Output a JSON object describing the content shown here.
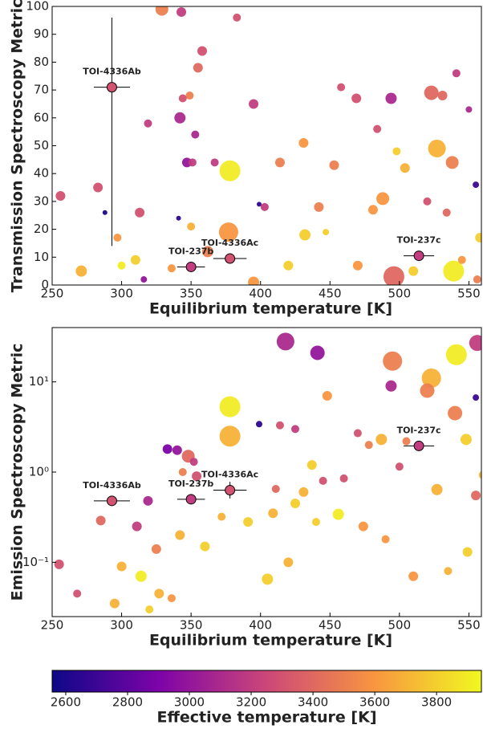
{
  "chart_data": [
    {
      "type": "scatter",
      "ylabel": "Transmission Spectroscopy Metric",
      "xlabel": "Equilibrium temperature [K]",
      "xlim": [
        250,
        559
      ],
      "ylim": [
        0,
        100
      ],
      "log_y": false,
      "xticks": [
        250,
        300,
        350,
        400,
        450,
        500,
        550
      ],
      "yticks": [
        0,
        10,
        20,
        30,
        40,
        50,
        60,
        70,
        80,
        90,
        100
      ],
      "x": [
        329,
        343,
        383,
        358,
        355,
        349,
        344,
        342,
        319,
        395,
        347,
        351,
        353,
        367,
        378,
        283,
        256,
        288,
        313,
        341,
        350,
        377,
        399,
        403,
        414,
        431,
        442,
        453,
        458,
        469,
        484,
        494,
        488,
        481,
        498,
        504,
        527,
        523,
        531,
        541,
        538,
        550,
        555,
        520,
        534,
        539,
        496,
        310,
        297,
        271,
        420,
        432,
        470,
        510,
        545,
        300,
        362,
        336,
        447,
        558,
        316,
        395,
        556
      ],
      "values": [
        99,
        98,
        96,
        84,
        78,
        68,
        67,
        60,
        58,
        65,
        44,
        44,
        54,
        44,
        41,
        35,
        32,
        26,
        26,
        24,
        21,
        19,
        29,
        28,
        44,
        51,
        28,
        43,
        71,
        67,
        56,
        67,
        31,
        27,
        48,
        42,
        49,
        69,
        68,
        76,
        44,
        63,
        36,
        30,
        26,
        5,
        3,
        9,
        17,
        5,
        7,
        18,
        7,
        5,
        9,
        7,
        12,
        6,
        19,
        17,
        2,
        1,
        2
      ],
      "sizes": [
        8,
        6,
        5,
        6,
        6,
        5,
        5,
        7,
        5,
        6,
        6,
        5,
        5,
        5,
        13,
        6,
        6,
        3,
        6,
        3,
        5,
        12,
        3,
        5,
        6,
        6,
        6,
        6,
        5,
        6,
        5,
        7,
        8,
        6,
        5,
        6,
        11,
        9,
        6,
        5,
        8,
        4,
        4,
        5,
        5,
        13,
        13,
        6,
        5,
        7,
        6,
        7,
        6,
        6,
        5,
        5,
        7,
        5,
        4,
        6,
        4,
        7,
        5
      ],
      "teff": [
        3500,
        3200,
        3300,
        3300,
        3400,
        3500,
        3300,
        3100,
        3200,
        3200,
        3000,
        3200,
        3100,
        3200,
        3900,
        3300,
        3300,
        2600,
        3300,
        2650,
        3700,
        3600,
        2650,
        3200,
        3500,
        3600,
        3500,
        3500,
        3300,
        3300,
        3300,
        3100,
        3600,
        3600,
        3800,
        3700,
        3700,
        3400,
        3400,
        3200,
        3500,
        3100,
        2700,
        3300,
        3400,
        3900,
        3400,
        3800,
        3600,
        3700,
        3800,
        3800,
        3600,
        3800,
        3600,
        3900,
        3500,
        3600,
        3800,
        3800,
        3000,
        3600,
        3500
      ],
      "highlights": [
        {
          "label": "TOI-4336Ab",
          "x": 293,
          "y": 71,
          "xerr": 13,
          "yerr": [
            57,
            25
          ],
          "teff": 3300
        },
        {
          "label": "TOI-237b",
          "x": 350,
          "y": 6.5,
          "xerr": 10,
          "teff": 3200
        },
        {
          "label": "TOI-4336Ac",
          "x": 378,
          "y": 9.5,
          "xerr": 12,
          "teff": 3300
        },
        {
          "label": "TOI-237c",
          "x": 514,
          "y": 10.5,
          "xerr": 11,
          "teff": 3200
        }
      ]
    },
    {
      "type": "scatter",
      "ylabel": "Emission Spectroscopy Metric",
      "xlabel": "Equilibrium temperature [K]",
      "xlim": [
        250,
        559
      ],
      "ylim": [
        0.025,
        40
      ],
      "log_y": true,
      "xticks": [
        250,
        300,
        350,
        400,
        450,
        500,
        550
      ],
      "yticks": [
        {
          "value": 0.1,
          "label": "10⁻¹"
        },
        {
          "value": 1,
          "label": "10⁰"
        },
        {
          "value": 10,
          "label": "10¹"
        }
      ],
      "x": [
        418,
        441,
        495,
        541,
        556,
        523,
        494,
        520,
        540,
        378,
        378,
        333,
        340,
        348,
        352,
        344,
        354,
        399,
        414,
        425,
        448,
        470,
        487,
        478,
        505,
        548,
        555,
        437,
        445,
        460,
        431,
        425,
        409,
        391,
        372,
        360,
        342,
        325,
        314,
        327,
        336,
        255,
        285,
        311,
        319,
        300,
        268,
        295,
        320,
        405,
        420,
        474,
        490,
        510,
        535,
        549,
        527,
        555,
        560,
        500,
        411,
        440,
        456
      ],
      "values": [
        28,
        21,
        17,
        20,
        27,
        11,
        9,
        8,
        4.5,
        5.3,
        2.5,
        1.8,
        1.75,
        1.5,
        1.3,
        1.0,
        0.9,
        3.4,
        3.3,
        3.0,
        7,
        2.7,
        2.3,
        2.0,
        2.2,
        2.3,
        6.7,
        1.2,
        0.8,
        0.85,
        0.6,
        0.45,
        0.35,
        0.28,
        0.32,
        0.15,
        0.2,
        0.14,
        0.07,
        0.045,
        0.04,
        0.095,
        0.29,
        0.25,
        0.48,
        0.09,
        0.045,
        0.035,
        0.03,
        0.065,
        0.1,
        0.25,
        0.18,
        0.07,
        0.08,
        0.13,
        0.64,
        0.55,
        0.93,
        1.15,
        0.65,
        0.28,
        0.34
      ],
      "sizes": [
        11,
        9,
        12,
        13,
        10,
        12,
        7,
        9,
        9,
        13,
        13,
        6,
        6,
        8,
        5,
        5,
        6,
        4,
        5,
        5,
        6,
        5,
        7,
        5,
        5,
        7,
        4,
        6,
        5,
        5,
        6,
        6,
        6,
        6,
        5,
        6,
        6,
        6,
        7,
        6,
        5,
        6,
        6,
        6,
        6,
        6,
        5,
        6,
        5,
        7,
        6,
        6,
        5,
        6,
        5,
        6,
        7,
        6,
        5,
        5,
        5,
        5,
        7
      ],
      "teff": [
        3100,
        3000,
        3500,
        3900,
        3200,
        3700,
        3100,
        3500,
        3500,
        3900,
        3700,
        2900,
        3000,
        3400,
        3200,
        3500,
        3300,
        2650,
        3300,
        3200,
        3600,
        3300,
        3700,
        3500,
        3500,
        3800,
        2700,
        3800,
        3300,
        3300,
        3700,
        3800,
        3700,
        3800,
        3700,
        3800,
        3700,
        3500,
        3900,
        3700,
        3600,
        3300,
        3400,
        3200,
        3100,
        3700,
        3300,
        3700,
        3800,
        3800,
        3700,
        3600,
        3600,
        3600,
        3700,
        3800,
        3700,
        3400,
        3700,
        3300,
        3400,
        3800,
        3900
      ],
      "highlights": [
        {
          "label": "TOI-4336Ab",
          "x": 293,
          "y": 0.48,
          "xerr": 13,
          "teff": 3300
        },
        {
          "label": "TOI-237b",
          "x": 350,
          "y": 0.5,
          "xerr": 10,
          "teff": 3200
        },
        {
          "label": "TOI-4336Ac",
          "x": 378,
          "y": 0.63,
          "xerr": 12,
          "yerr": [
            0.12,
            0.15
          ],
          "teff": 3300
        },
        {
          "label": "TOI-237c",
          "x": 514,
          "y": 1.95,
          "xerr": 11,
          "teff": 3200
        }
      ]
    },
    {
      "type": "colorbar",
      "label": "Effective temperature [K]",
      "colormap": "plasma",
      "lim": [
        2556,
        3945
      ],
      "ticks": [
        2600,
        2800,
        3000,
        3200,
        3400,
        3600,
        3800
      ]
    }
  ]
}
